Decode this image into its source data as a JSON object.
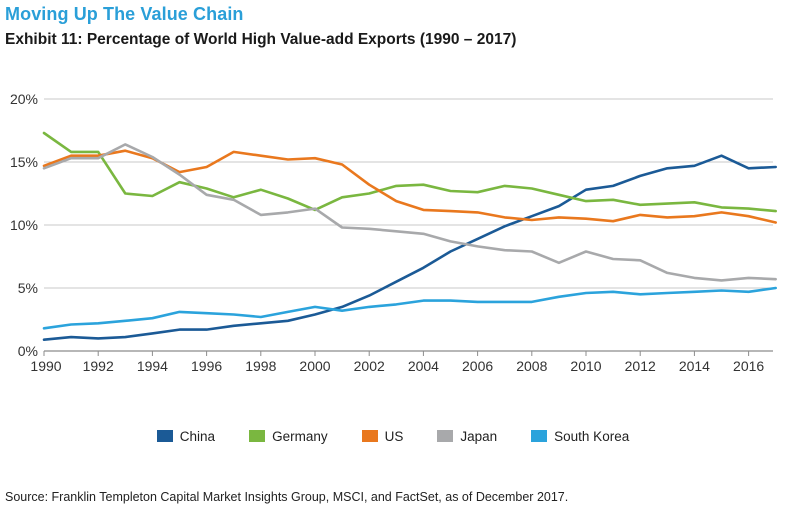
{
  "header": {
    "headline": "Moving Up The Value Chain",
    "subtitle": "Exhibit 11: Percentage of World High Value-add Exports (1990 – 2017)"
  },
  "footer": {
    "source": "Source: Franklin Templeton Capital Market Insights Group, MSCI, and FactSet, as of December 2017."
  },
  "chart_data": {
    "type": "line",
    "title": "Exhibit 11: Percentage of World High Value-add Exports (1990 – 2017)",
    "xlabel": "",
    "ylabel": "",
    "xlim": [
      1990,
      2017
    ],
    "ylim": [
      0,
      20
    ],
    "x": [
      1990,
      1991,
      1992,
      1993,
      1994,
      1995,
      1996,
      1997,
      1998,
      1999,
      2000,
      2001,
      2002,
      2003,
      2004,
      2005,
      2006,
      2007,
      2008,
      2009,
      2010,
      2011,
      2012,
      2013,
      2014,
      2015,
      2016,
      2017
    ],
    "x_ticks": [
      1990,
      1992,
      1994,
      1996,
      1998,
      2000,
      2002,
      2004,
      2006,
      2008,
      2010,
      2012,
      2014,
      2016
    ],
    "x_tick_labels": [
      "1990",
      "1992",
      "1994",
      "1996",
      "1998",
      "2000",
      "2002",
      "2004",
      "2006",
      "2008",
      "2010",
      "2012",
      "2014",
      "2016"
    ],
    "y_ticks": [
      0,
      5,
      10,
      15,
      20
    ],
    "y_tick_labels": [
      "0%",
      "5%",
      "10%",
      "15%",
      "20%"
    ],
    "grid": true,
    "legend_position": "bottom-center",
    "series": [
      {
        "name": "China",
        "color": "#1b5a96",
        "values": [
          0.9,
          1.1,
          1.0,
          1.1,
          1.4,
          1.7,
          1.7,
          2.0,
          2.2,
          2.4,
          2.9,
          3.5,
          4.4,
          5.5,
          6.6,
          7.9,
          8.9,
          9.9,
          10.7,
          11.5,
          12.8,
          13.1,
          13.9,
          14.5,
          14.7,
          15.5,
          14.5,
          14.6
        ]
      },
      {
        "name": "Germany",
        "color": "#7ab740",
        "values": [
          17.3,
          15.8,
          15.8,
          12.5,
          12.3,
          13.4,
          12.9,
          12.2,
          12.8,
          12.1,
          11.2,
          12.2,
          12.5,
          13.1,
          13.2,
          12.7,
          12.6,
          13.1,
          12.9,
          12.4,
          11.9,
          12.0,
          11.6,
          11.7,
          11.8,
          11.4,
          11.3,
          11.1
        ]
      },
      {
        "name": "US",
        "color": "#e9781e",
        "values": [
          14.7,
          15.5,
          15.5,
          15.9,
          15.3,
          14.2,
          14.6,
          15.8,
          15.5,
          15.2,
          15.3,
          14.8,
          13.2,
          11.9,
          11.2,
          11.1,
          11.0,
          10.6,
          10.4,
          10.6,
          10.5,
          10.3,
          10.8,
          10.6,
          10.7,
          11.0,
          10.7,
          10.2
        ]
      },
      {
        "name": "Japan",
        "color": "#a8a9ab",
        "values": [
          14.5,
          15.3,
          15.3,
          16.4,
          15.4,
          14.0,
          12.4,
          12.0,
          10.8,
          11.0,
          11.3,
          9.8,
          9.7,
          9.5,
          9.3,
          8.7,
          8.3,
          8.0,
          7.9,
          7.0,
          7.9,
          7.3,
          7.2,
          6.2,
          5.8,
          5.6,
          5.8,
          5.7
        ]
      },
      {
        "name": "South Korea",
        "color": "#2ba3dc",
        "values": [
          1.8,
          2.1,
          2.2,
          2.4,
          2.6,
          3.1,
          3.0,
          2.9,
          2.7,
          3.1,
          3.5,
          3.2,
          3.5,
          3.7,
          4.0,
          4.0,
          3.9,
          3.9,
          3.9,
          4.3,
          4.6,
          4.7,
          4.5,
          4.6,
          4.7,
          4.8,
          4.7,
          5.0
        ]
      }
    ]
  }
}
